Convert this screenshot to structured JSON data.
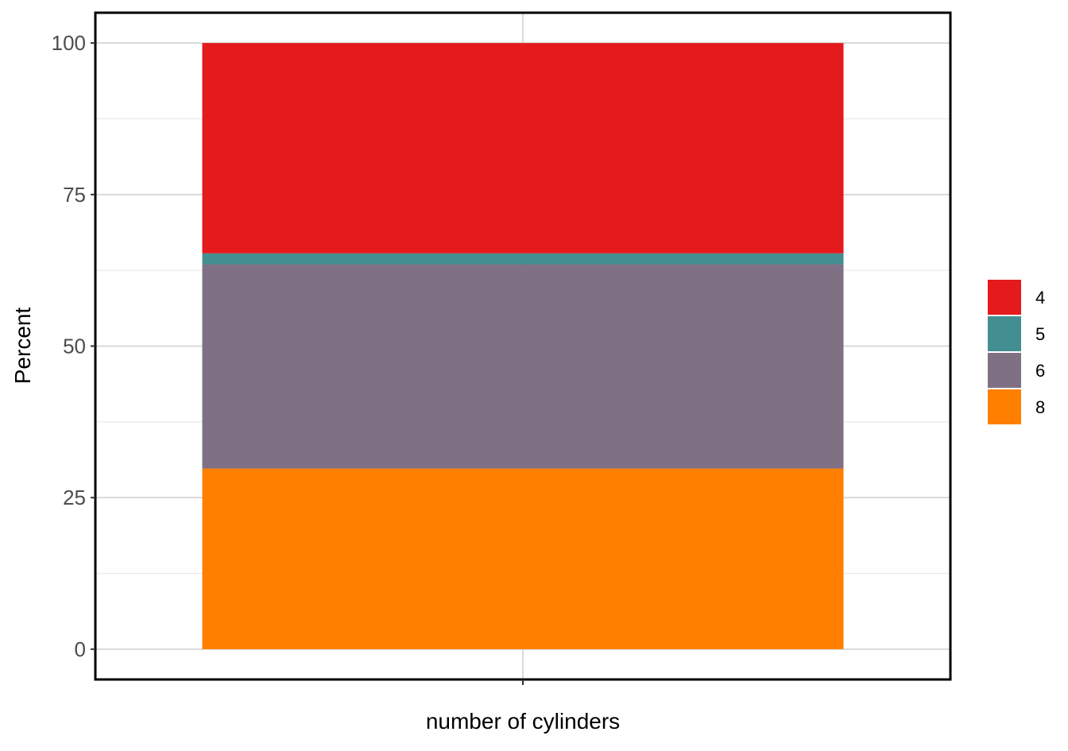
{
  "chart_data": {
    "type": "bar",
    "stacked": true,
    "categories": [
      ""
    ],
    "series": [
      {
        "name": "8",
        "values": [
          29.8
        ],
        "color": "#ff7f00"
      },
      {
        "name": "6",
        "values": [
          33.7
        ],
        "color": "#7f7084"
      },
      {
        "name": "5",
        "values": [
          1.8
        ],
        "color": "#438e91"
      },
      {
        "name": "4",
        "values": [
          34.7
        ],
        "color": "#e41a1c"
      }
    ],
    "legend_order": [
      "4",
      "5",
      "6",
      "8"
    ],
    "title": "",
    "xlabel": "number of cylinders",
    "ylabel": "Percent",
    "ylim": [
      -5,
      105
    ],
    "yticks": [
      0,
      25,
      50,
      75,
      100
    ],
    "grid": true,
    "legend_position": "right"
  }
}
